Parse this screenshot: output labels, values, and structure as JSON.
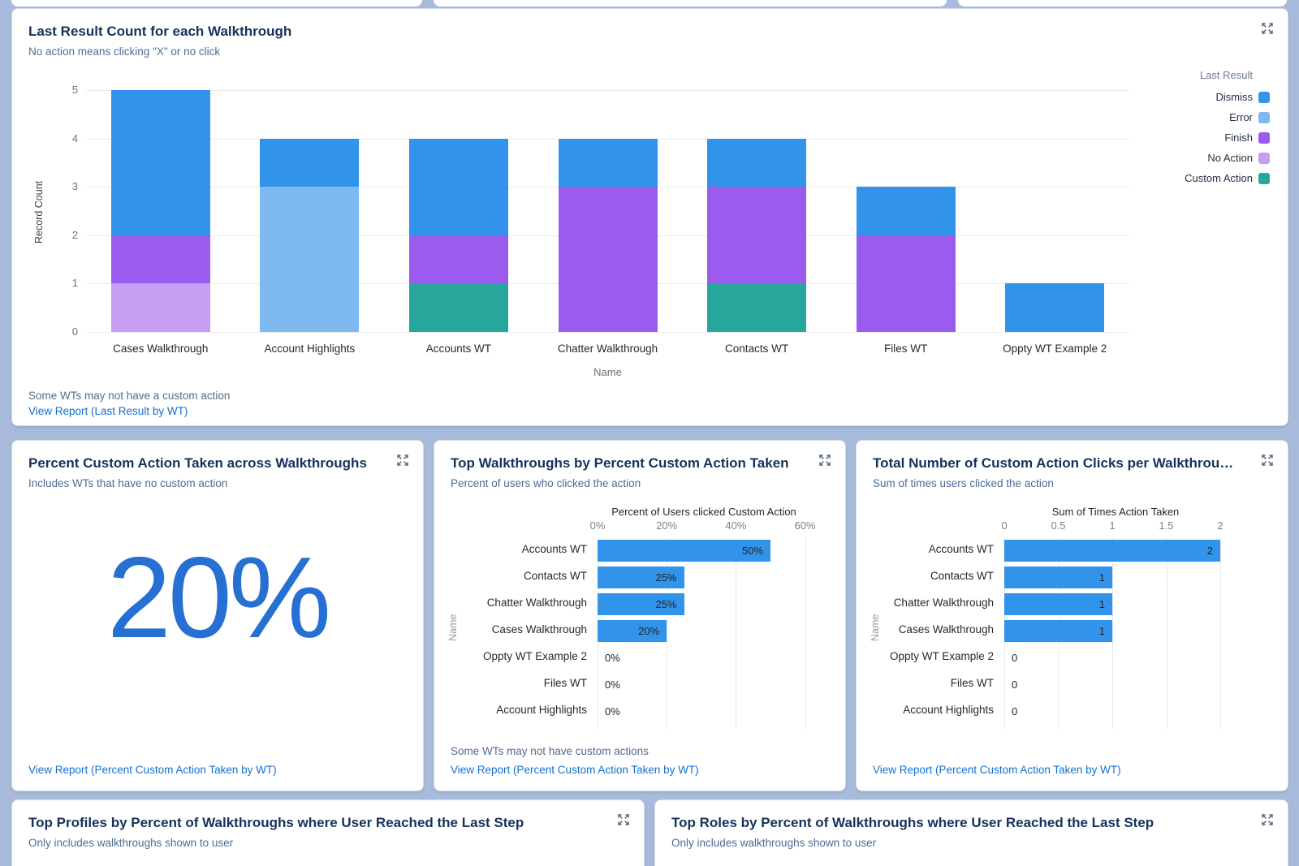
{
  "colors": {
    "background": "#A9BBDC",
    "link": "#1270D2",
    "metric_blue": "#2570D2",
    "bar_blue": "#3194EA",
    "dismiss": "#3194EA",
    "error": "#7EBAF1",
    "finish": "#9C5BEF",
    "no_action": "#C59EF4",
    "custom_action": "#27A79B"
  },
  "panels": {
    "last_result": {
      "title": "Last Result Count for each Walkthrough",
      "subtitle": "No action means clicking \"X\" or no click",
      "footnote": "Some WTs may not have a custom action",
      "link": "View Report (Last Result by WT)"
    },
    "percent_custom_action": {
      "title": "Percent Custom Action Taken across Walkthroughs",
      "subtitle": "Includes WTs that have no custom action",
      "value": "20%",
      "link": "View Report (Percent Custom Action Taken by WT)"
    },
    "top_walkthroughs": {
      "title": "Top Walkthroughs by Percent Custom Action Taken",
      "subtitle": "Percent of users who clicked the action",
      "footnote": "Some WTs may not have custom actions",
      "link": "View Report (Percent Custom Action Taken by WT)"
    },
    "total_clicks": {
      "title": "Total Number of Custom Action Clicks per Walkthrou…",
      "subtitle": "Sum of times users clicked the action",
      "link": "View Report (Percent Custom Action Taken by WT)"
    },
    "top_profiles": {
      "title": "Top Profiles by Percent of Walkthroughs where User Reached the Last Step",
      "subtitle": "Only includes walkthroughs shown to user"
    },
    "top_roles": {
      "title": "Top Roles by Percent of Walkthroughs where User Reached the Last Step",
      "subtitle": "Only includes walkthroughs shown to user"
    }
  },
  "chart_data": [
    {
      "type": "bar",
      "stacked": true,
      "orientation": "vertical",
      "title": "Last Result Count for each Walkthrough",
      "xlabel": "Name",
      "ylabel": "Record Count",
      "ylim": [
        0,
        5
      ],
      "yticks": [
        0,
        1,
        2,
        3,
        4,
        5
      ],
      "grid": true,
      "legend_title": "Last Result",
      "legend_position": "right",
      "categories": [
        "Cases Walkthrough",
        "Account Highlights",
        "Accounts WT",
        "Chatter Walkthrough",
        "Contacts WT",
        "Files WT",
        "Oppty WT Example 2"
      ],
      "series": [
        {
          "name": "Dismiss",
          "color": "#3194EA",
          "values": [
            3,
            1,
            2,
            1,
            1,
            1,
            1
          ]
        },
        {
          "name": "Error",
          "color": "#7EBAF1",
          "values": [
            0,
            3,
            0,
            0,
            0,
            0,
            0
          ]
        },
        {
          "name": "Finish",
          "color": "#9C5BEF",
          "values": [
            1,
            0,
            1,
            3,
            2,
            2,
            0
          ]
        },
        {
          "name": "No Action",
          "color": "#C59EF4",
          "values": [
            1,
            0,
            0,
            0,
            0,
            0,
            0
          ]
        },
        {
          "name": "Custom Action",
          "color": "#27A79B",
          "values": [
            0,
            0,
            1,
            0,
            1,
            0,
            0
          ]
        }
      ]
    },
    {
      "type": "bar",
      "orientation": "horizontal",
      "title": "Top Walkthroughs by Percent Custom Action Taken",
      "axis_title": "Percent of Users clicked Custom Action",
      "ylabel": "Name",
      "xlim": [
        0,
        61.5
      ],
      "grid": true,
      "xticks": [
        {
          "label": "0%",
          "value": 0
        },
        {
          "label": "20%",
          "value": 20
        },
        {
          "label": "40%",
          "value": 40
        },
        {
          "label": "60%",
          "value": 60
        }
      ],
      "categories": [
        "Accounts WT",
        "Contacts WT",
        "Chatter Walkthrough",
        "Cases Walkthrough",
        "Oppty WT Example 2",
        "Files WT",
        "Account Highlights"
      ],
      "values": [
        50,
        25,
        25,
        20,
        0,
        0,
        0
      ],
      "value_labels": [
        "50%",
        "25%",
        "25%",
        "20%",
        "0%",
        "0%",
        "0%"
      ],
      "bar_color": "#3194EA"
    },
    {
      "type": "bar",
      "orientation": "horizontal",
      "title": "Total Number of Custom Action Clicks per Walkthrough",
      "axis_title": "Sum of Times Action Taken",
      "ylabel": "Name",
      "xlim": [
        0,
        2.06
      ],
      "grid": true,
      "xticks": [
        {
          "label": "0",
          "value": 0
        },
        {
          "label": "0.5",
          "value": 0.5
        },
        {
          "label": "1",
          "value": 1
        },
        {
          "label": "1.5",
          "value": 1.5
        },
        {
          "label": "2",
          "value": 2
        }
      ],
      "categories": [
        "Accounts WT",
        "Contacts WT",
        "Chatter Walkthrough",
        "Cases Walkthrough",
        "Oppty WT Example 2",
        "Files WT",
        "Account Highlights"
      ],
      "values": [
        2,
        1,
        1,
        1,
        0,
        0,
        0
      ],
      "value_labels": [
        "2",
        "1",
        "1",
        "1",
        "0",
        "0",
        "0"
      ],
      "bar_color": "#3194EA"
    }
  ]
}
